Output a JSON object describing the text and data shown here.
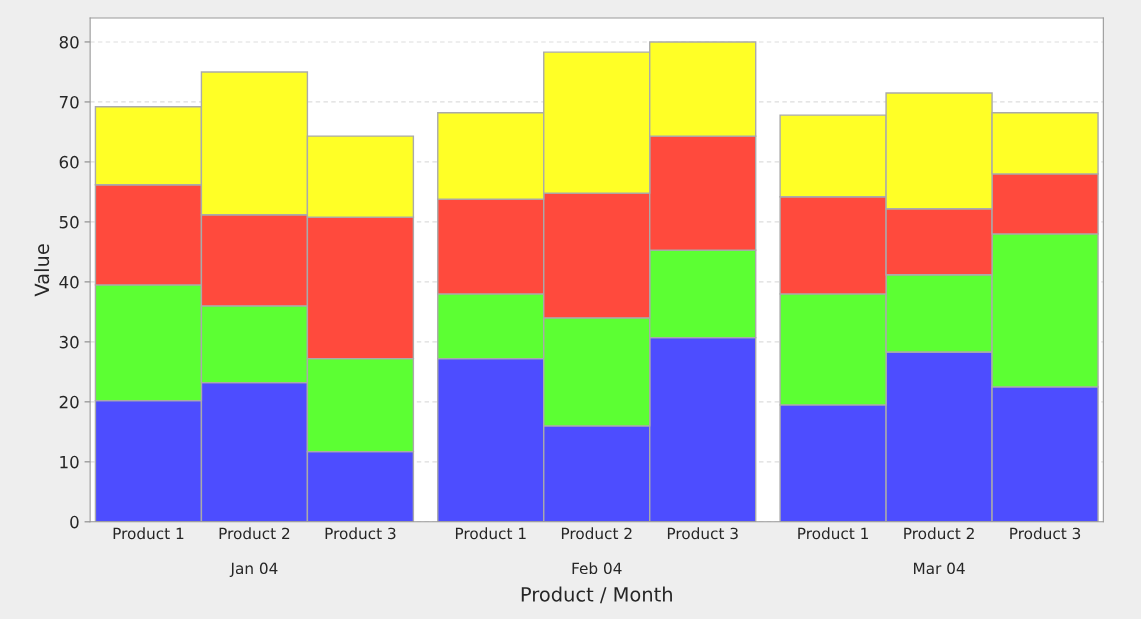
{
  "chart_data": {
    "type": "bar",
    "stacked": true,
    "xlabel": "Product / Month",
    "ylabel": "Value",
    "categories": [
      "Product 1",
      "Product 2",
      "Product 3",
      "Product 1",
      "Product 2",
      "Product 3",
      "Product 1",
      "Product 2",
      "Product 3"
    ],
    "annotations": [
      "Jan 04",
      "Feb 04",
      "Mar 04"
    ],
    "series": [
      {
        "color": "#4d4dff",
        "values": [
          20.2,
          23.2,
          11.7,
          27.2,
          16,
          30.7,
          19.5,
          28.3,
          22.5
        ]
      },
      {
        "color": "#5cff33",
        "values": [
          19.3,
          12.8,
          15.5,
          10.8,
          18,
          14.6,
          18.5,
          12.9,
          25.5
        ]
      },
      {
        "color": "#ff4a3d",
        "values": [
          16.7,
          15.2,
          23.6,
          15.8,
          20.8,
          19,
          16.2,
          11,
          10
        ]
      },
      {
        "color": "#ffff26",
        "values": [
          13,
          23.8,
          13.5,
          14.4,
          23.5,
          15.7,
          13.6,
          19.3,
          10.2
        ]
      }
    ],
    "ylim": [
      0,
      84
    ],
    "yticks": [
      0,
      10,
      20,
      30,
      40,
      50,
      60,
      70,
      80
    ],
    "grid": "y",
    "legend": false
  }
}
